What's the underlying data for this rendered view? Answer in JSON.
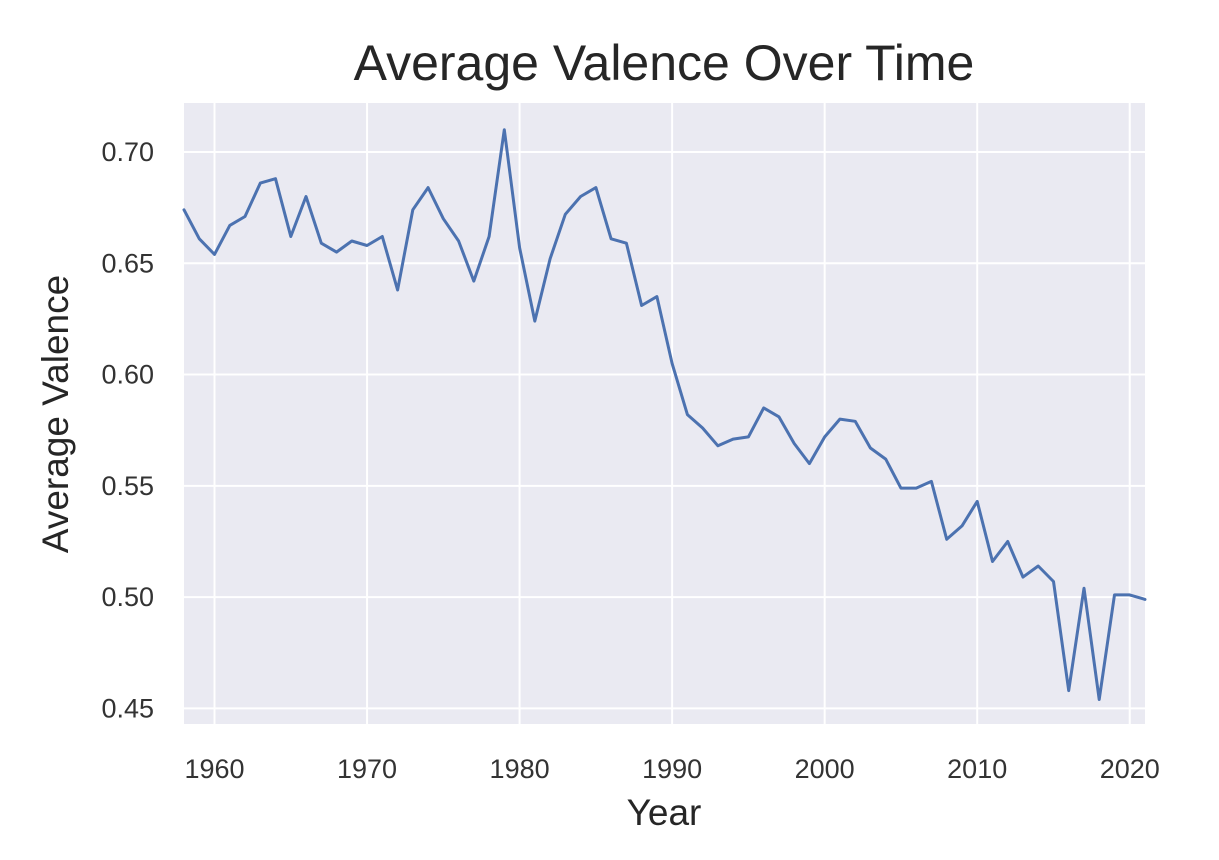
{
  "chart_data": {
    "type": "line",
    "title": "Average Valence Over Time",
    "xlabel": "Year",
    "ylabel": "Average Valence",
    "xlim": [
      1958,
      2021
    ],
    "ylim": [
      0.443,
      0.722
    ],
    "grid": true,
    "x_ticks": [
      1960,
      1970,
      1980,
      1990,
      2000,
      2010,
      2020
    ],
    "x_tick_labels": [
      "1960",
      "1970",
      "1980",
      "1990",
      "2000",
      "2010",
      "2020"
    ],
    "y_ticks": [
      0.45,
      0.5,
      0.55,
      0.6,
      0.65,
      0.7
    ],
    "y_tick_labels": [
      "0.45",
      "0.50",
      "0.55",
      "0.60",
      "0.65",
      "0.70"
    ],
    "colors": {
      "series": "#4c72b0",
      "plot_background": "#eaeaf2",
      "grid": "#ffffff"
    },
    "series": [
      {
        "x": [
          1958,
          1959,
          1960,
          1961,
          1962,
          1963,
          1964,
          1965,
          1966,
          1967,
          1968,
          1969,
          1970,
          1971,
          1972,
          1973,
          1974,
          1975,
          1976,
          1977,
          1978,
          1979,
          1980,
          1981,
          1982,
          1983,
          1984,
          1985,
          1986,
          1987,
          1988,
          1989,
          1990,
          1991,
          1992,
          1993,
          1994,
          1995,
          1996,
          1997,
          1998,
          1999,
          2000,
          2001,
          2002,
          2003,
          2004,
          2005,
          2006,
          2007,
          2008,
          2009,
          2010,
          2011,
          2012,
          2013,
          2014,
          2015,
          2016,
          2017,
          2018,
          2019,
          2020,
          2021
        ],
        "values": [
          0.674,
          0.661,
          0.654,
          0.667,
          0.671,
          0.686,
          0.688,
          0.662,
          0.68,
          0.659,
          0.655,
          0.66,
          0.658,
          0.662,
          0.638,
          0.674,
          0.684,
          0.67,
          0.66,
          0.642,
          0.662,
          0.71,
          0.657,
          0.624,
          0.652,
          0.672,
          0.68,
          0.684,
          0.661,
          0.659,
          0.631,
          0.635,
          0.605,
          0.582,
          0.576,
          0.568,
          0.571,
          0.572,
          0.585,
          0.581,
          0.569,
          0.56,
          0.572,
          0.58,
          0.579,
          0.567,
          0.562,
          0.549,
          0.549,
          0.552,
          0.526,
          0.532,
          0.543,
          0.516,
          0.525,
          0.509,
          0.514,
          0.507,
          0.458,
          0.504,
          0.454,
          0.501,
          0.501,
          0.499
        ]
      }
    ]
  }
}
